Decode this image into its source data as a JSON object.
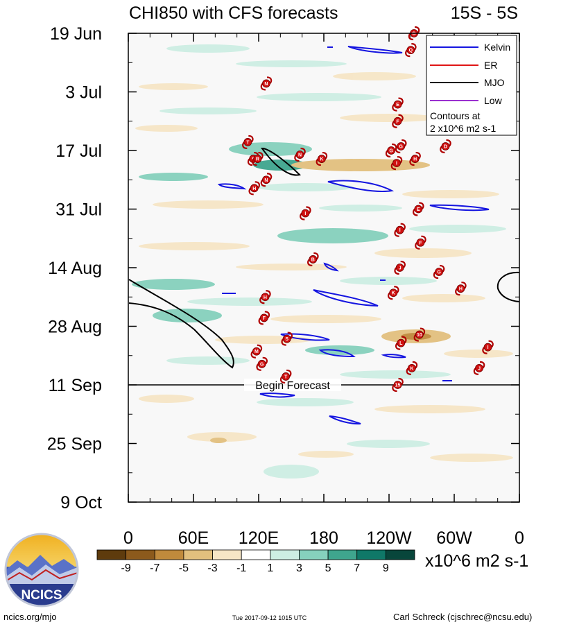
{
  "chart_data": {
    "type": "heatmap",
    "title_left": "CHI850 with CFS forecasts",
    "title_right": "15S - 5S",
    "y_ticks": [
      "19 Jun",
      "3 Jul",
      "17 Jul",
      "31 Jul",
      "14 Aug",
      "28 Aug",
      "11 Sep",
      "25 Sep",
      "9 Oct"
    ],
    "x_ticks": [
      "0",
      "60E",
      "120E",
      "180",
      "120W",
      "60W",
      "0"
    ],
    "forecast_label": "Begin Forecast",
    "forecast_date": "11 Sep",
    "legend": {
      "placement": "top-right",
      "entries": [
        {
          "name": "Kelvin",
          "color": "#1515e0"
        },
        {
          "name": "ER",
          "color": "#e01515"
        },
        {
          "name": "MJO",
          "color": "#000000"
        },
        {
          "name": "Low",
          "color": "#9a30d0"
        }
      ],
      "note_line1": "Contours at",
      "note_line2": "2 x10^6 m2 s-1"
    },
    "colorbar": {
      "labels": [
        "-9",
        "-7",
        "-5",
        "-3",
        "-1",
        "1",
        "3",
        "5",
        "7",
        "9"
      ],
      "colors": [
        "#5e3b0d",
        "#8c5a1c",
        "#c08a3c",
        "#e2c07e",
        "#f6e6c6",
        "#ffffff",
        "#cdeee3",
        "#86d1bd",
        "#3fa58e",
        "#0f7868",
        "#08463b"
      ],
      "units": "x10^6 m2 s-1"
    },
    "storms": [
      {
        "label": "G",
        "lon": 263,
        "day": 0
      },
      {
        "label": "Q",
        "lon": 260,
        "day": 4
      },
      {
        "label": "N",
        "lon": 127,
        "day": 12
      },
      {
        "label": "E",
        "lon": 248,
        "day": 17
      },
      {
        "label": "F",
        "lon": 248,
        "day": 21
      },
      {
        "label": "T",
        "lon": 110,
        "day": 26
      },
      {
        "label": "S",
        "lon": 115,
        "day": 30
      },
      {
        "label": "R",
        "lon": 119,
        "day": 30
      },
      {
        "label": "N",
        "lon": 158,
        "day": 29
      },
      {
        "label": "K",
        "lon": 178,
        "day": 30
      },
      {
        "label": "G",
        "lon": 242,
        "day": 28
      },
      {
        "label": "G",
        "lon": 251,
        "day": 27
      },
      {
        "label": "D",
        "lon": 292,
        "day": 27
      },
      {
        "label": "I",
        "lon": 247,
        "day": 31
      },
      {
        "label": "H",
        "lon": 264,
        "day": 30
      },
      {
        "label": "N",
        "lon": 127,
        "day": 35
      },
      {
        "label": "H",
        "lon": 116,
        "day": 37
      },
      {
        "label": "E",
        "lon": 267,
        "day": 42
      },
      {
        "label": "I",
        "lon": 163,
        "day": 43
      },
      {
        "label": "I",
        "lon": 250,
        "day": 47
      },
      {
        "label": "F",
        "lon": 269,
        "day": 50
      },
      {
        "label": "B",
        "lon": 170,
        "day": 54
      },
      {
        "label": "J",
        "lon": 250,
        "day": 56
      },
      {
        "label": "G",
        "lon": 286,
        "day": 57
      },
      {
        "label": "K",
        "lon": 244,
        "day": 62
      },
      {
        "label": "H",
        "lon": 306,
        "day": 61
      },
      {
        "label": "H",
        "lon": 126,
        "day": 63
      },
      {
        "label": "F",
        "lon": 125,
        "day": 68
      },
      {
        "label": "S",
        "lon": 146,
        "day": 73
      },
      {
        "label": "10",
        "lon": 268,
        "day": 72
      },
      {
        "label": "L",
        "lon": 251,
        "day": 74
      },
      {
        "label": "I",
        "lon": 331,
        "day": 75
      },
      {
        "label": "M",
        "lon": 118,
        "day": 76
      },
      {
        "label": "G",
        "lon": 123,
        "day": 79
      },
      {
        "label": "K",
        "lon": 261,
        "day": 80
      },
      {
        "label": "J",
        "lon": 323,
        "day": 80
      },
      {
        "label": "T",
        "lon": 145,
        "day": 82
      },
      {
        "label": "15",
        "lon": 248,
        "day": 84
      }
    ]
  },
  "footer": {
    "left": "ncics.org/mjo",
    "center": "Tue 2017-09-12 1015 UTC",
    "right": "Carl Schreck (cjschrec@ncsu.edu)",
    "logo_text": "NCICS"
  }
}
